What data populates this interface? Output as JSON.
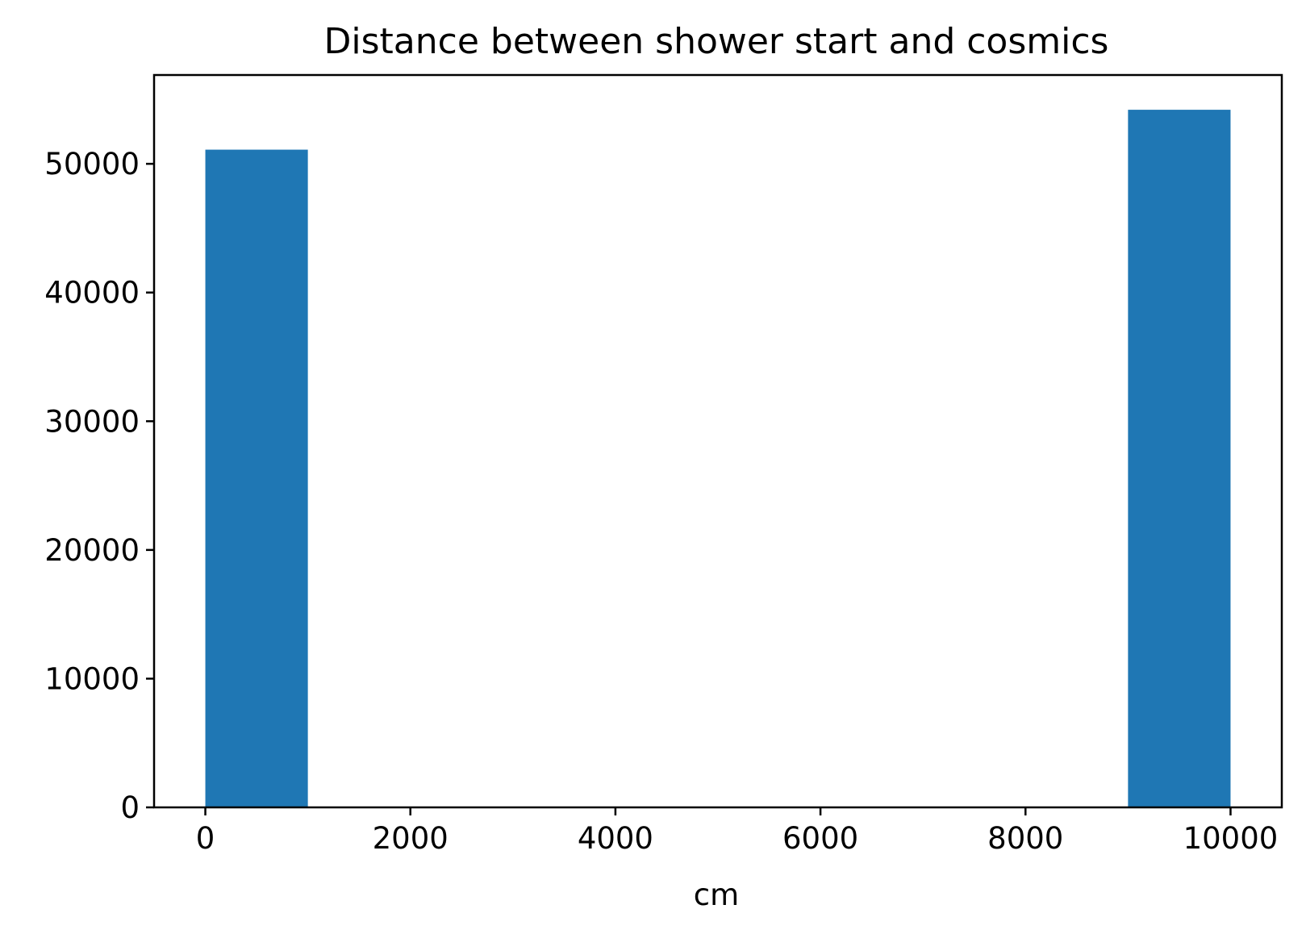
{
  "chart_data": {
    "type": "bar",
    "title": "Distance between shower start and cosmics",
    "xlabel": "cm",
    "ylabel": "",
    "bins": [
      {
        "x0": 0,
        "x1": 1000,
        "value": 51100
      },
      {
        "x0": 1000,
        "x1": 2000,
        "value": 0
      },
      {
        "x0": 2000,
        "x1": 3000,
        "value": 0
      },
      {
        "x0": 3000,
        "x1": 4000,
        "value": 0
      },
      {
        "x0": 4000,
        "x1": 5000,
        "value": 0
      },
      {
        "x0": 5000,
        "x1": 6000,
        "value": 0
      },
      {
        "x0": 6000,
        "x1": 7000,
        "value": 0
      },
      {
        "x0": 7000,
        "x1": 8000,
        "value": 0
      },
      {
        "x0": 8000,
        "x1": 9000,
        "value": 0
      },
      {
        "x0": 9000,
        "x1": 10000,
        "value": 54200
      }
    ],
    "xlim": [
      -500,
      10500
    ],
    "ylim": [
      0,
      56900
    ],
    "xticks": [
      0,
      2000,
      4000,
      6000,
      8000,
      10000
    ],
    "xtick_labels": [
      "0",
      "2000",
      "4000",
      "6000",
      "8000",
      "10000"
    ],
    "yticks": [
      0,
      10000,
      20000,
      30000,
      40000,
      50000
    ],
    "ytick_labels": [
      "0",
      "10000",
      "20000",
      "30000",
      "40000",
      "50000"
    ],
    "grid": false,
    "legend": "none",
    "bar_color": "#1f77b4"
  }
}
